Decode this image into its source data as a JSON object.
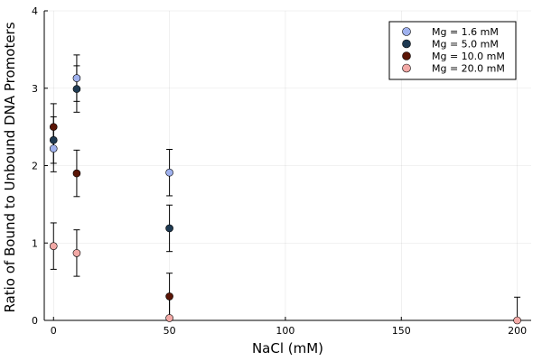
{
  "chart_data": {
    "type": "scatter",
    "xlabel": "NaCl (mM)",
    "ylabel": "Ratio of Bound to Unbound DNA Promoters",
    "xlim": [
      -4,
      206
    ],
    "ylim": [
      0,
      4
    ],
    "xticks": [
      0,
      50,
      100,
      150,
      200
    ],
    "yticks": [
      0,
      1,
      2,
      3,
      4
    ],
    "grid": true,
    "legend_position": "top-right",
    "error_bars": true,
    "series": [
      {
        "name": "Mg = 1.6 mM",
        "color": "#9fb1ee",
        "points": [
          {
            "x": 0,
            "y": 2.22,
            "err": 0.3
          },
          {
            "x": 10,
            "y": 3.13,
            "err": 0.3
          },
          {
            "x": 50,
            "y": 1.91,
            "err": 0.3
          }
        ]
      },
      {
        "name": "Mg = 5.0 mM",
        "color": "#1f3a52",
        "points": [
          {
            "x": 0,
            "y": 2.33,
            "err": 0.3
          },
          {
            "x": 10,
            "y": 2.99,
            "err": 0.3
          },
          {
            "x": 50,
            "y": 1.19,
            "err": 0.3
          }
        ]
      },
      {
        "name": "Mg = 10.0 mM",
        "color": "#5a1506",
        "points": [
          {
            "x": 0,
            "y": 2.5,
            "err": 0.3
          },
          {
            "x": 10,
            "y": 1.9,
            "err": 0.3
          },
          {
            "x": 50,
            "y": 0.31,
            "err": 0.3
          }
        ]
      },
      {
        "name": "Mg = 20.0 mM",
        "color": "#f2a9a6",
        "points": [
          {
            "x": 0,
            "y": 0.96,
            "err": 0.3
          },
          {
            "x": 10,
            "y": 0.87,
            "err": 0.3
          },
          {
            "x": 50,
            "y": 0.03,
            "err": 0.3
          },
          {
            "x": 200,
            "y": 0.0,
            "err": 0.3
          }
        ]
      }
    ]
  }
}
